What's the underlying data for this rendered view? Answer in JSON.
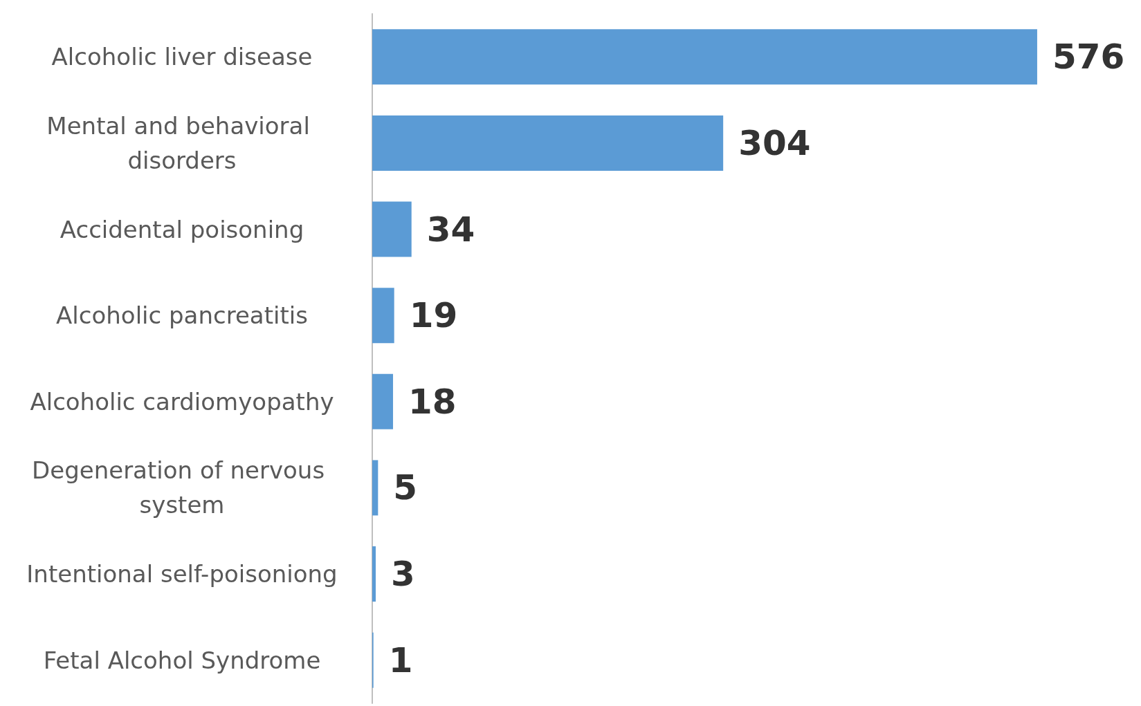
{
  "chart_data": {
    "type": "bar",
    "orientation": "horizontal",
    "categories": [
      "Alcoholic liver disease",
      "Mental and behavioral disorders",
      "Accidental poisoning",
      "Alcoholic pancreatitis",
      "Alcoholic cardiomyopathy",
      "Degeneration of nervous system",
      "Intentional self-poisoniong",
      "Fetal Alcohol Syndrome"
    ],
    "values": [
      576,
      304,
      34,
      19,
      18,
      5,
      3,
      1
    ],
    "color": "#5b9bd5",
    "data_labels": true
  }
}
